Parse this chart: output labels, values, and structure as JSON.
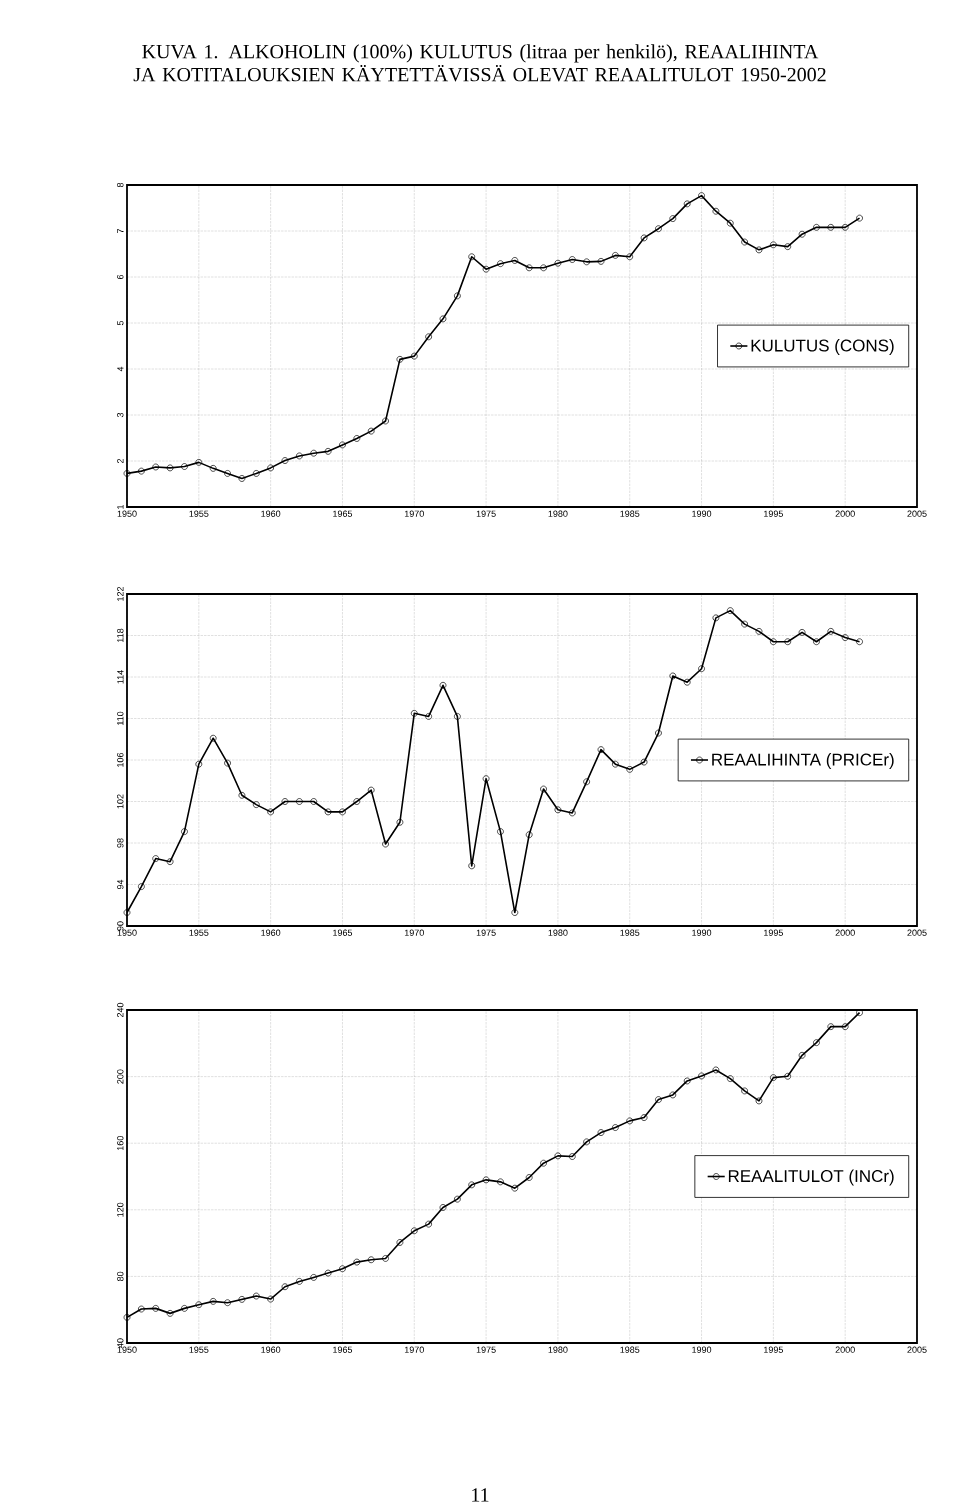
{
  "chart_data": [
    {
      "type": "line",
      "title": "KUVA 1. ALKOHOLIN (100%) KULUTUS (litraa per henkilö), REAALIHINTA JA KOTITALOUKSIEN KÄYTETTÄVISSÄ OLEVAT REAALITULOT 1950-2002",
      "x": [
        1950,
        1951,
        1952,
        1953,
        1954,
        1955,
        1956,
        1957,
        1958,
        1959,
        1960,
        1961,
        1962,
        1963,
        1964,
        1965,
        1966,
        1967,
        1968,
        1969,
        1970,
        1971,
        1972,
        1973,
        1974,
        1975,
        1976,
        1977,
        1978,
        1979,
        1980,
        1981,
        1982,
        1983,
        1984,
        1985,
        1986,
        1987,
        1988,
        1989,
        1990,
        1991,
        1992,
        1993,
        1994,
        1995,
        1996,
        1997,
        1998,
        1999,
        2000,
        2001
      ],
      "series": [
        {
          "name": "KULUTUS (CONS)",
          "color": "#000000",
          "values": [
            1.73,
            1.78,
            1.87,
            1.85,
            1.88,
            1.97,
            1.84,
            1.73,
            1.62,
            1.73,
            1.85,
            2.01,
            2.11,
            2.17,
            2.21,
            2.35,
            2.49,
            2.65,
            2.87,
            4.21,
            4.28,
            4.7,
            5.09,
            5.59,
            6.44,
            6.17,
            6.29,
            6.36,
            6.2,
            6.2,
            6.3,
            6.38,
            6.33,
            6.34,
            6.47,
            6.44,
            6.85,
            7.05,
            7.27,
            7.59,
            7.77,
            7.43,
            7.17,
            6.76,
            6.59,
            6.7,
            6.66,
            6.93,
            7.08,
            7.08,
            7.08,
            7.28
          ]
        }
      ],
      "xlim": [
        1950,
        2005
      ],
      "xticks": [
        1950,
        1955,
        1960,
        1965,
        1970,
        1975,
        1980,
        1985,
        1990,
        1995,
        2000,
        2005
      ],
      "ylim": [
        1,
        8
      ],
      "yticks": [
        1,
        2,
        3,
        4,
        5,
        6,
        7,
        8
      ],
      "grid": true,
      "legend": "right",
      "marker": "circle",
      "line_style": "solid"
    },
    {
      "type": "line",
      "x": [
        1950,
        1951,
        1952,
        1953,
        1954,
        1955,
        1956,
        1957,
        1958,
        1959,
        1960,
        1961,
        1962,
        1963,
        1964,
        1965,
        1966,
        1967,
        1968,
        1969,
        1970,
        1971,
        1972,
        1973,
        1974,
        1975,
        1976,
        1977,
        1978,
        1979,
        1980,
        1981,
        1982,
        1983,
        1984,
        1985,
        1986,
        1987,
        1988,
        1989,
        1990,
        1991,
        1992,
        1993,
        1994,
        1995,
        1996,
        1997,
        1998,
        1999,
        2000,
        2001
      ],
      "series": [
        {
          "name": "REAALIHINTA (PRICEr)",
          "color": "#000000",
          "values": [
            91.3,
            93.8,
            96.5,
            96.2,
            99.1,
            105.6,
            108.1,
            105.7,
            102.6,
            101.7,
            101.0,
            102.0,
            102.0,
            102.0,
            101.0,
            101.0,
            102.0,
            103.1,
            97.9,
            100.0,
            110.5,
            110.2,
            113.2,
            110.2,
            95.8,
            104.2,
            99.1,
            91.3,
            98.8,
            103.2,
            101.2,
            100.9,
            103.9,
            107.0,
            105.6,
            105.1,
            105.8,
            108.6,
            114.1,
            113.5,
            114.8,
            119.7,
            120.4,
            119.1,
            118.4,
            117.4,
            117.4,
            118.3,
            117.4,
            118.4,
            117.8,
            117.4
          ]
        }
      ],
      "xlim": [
        1950,
        2005
      ],
      "xticks": [
        1950,
        1955,
        1960,
        1965,
        1970,
        1975,
        1980,
        1985,
        1990,
        1995,
        2000,
        2005
      ],
      "ylim": [
        90,
        122
      ],
      "yticks": [
        90,
        94,
        98,
        102,
        106,
        110,
        114,
        118,
        122
      ],
      "grid": true,
      "legend": "right",
      "marker": "circle",
      "line_style": "solid"
    },
    {
      "type": "line",
      "x": [
        1950,
        1951,
        1952,
        1953,
        1954,
        1955,
        1956,
        1957,
        1958,
        1959,
        1960,
        1961,
        1962,
        1963,
        1964,
        1965,
        1966,
        1967,
        1968,
        1969,
        1970,
        1971,
        1972,
        1973,
        1974,
        1975,
        1976,
        1977,
        1978,
        1979,
        1980,
        1981,
        1982,
        1983,
        1984,
        1985,
        1986,
        1987,
        1988,
        1989,
        1990,
        1991,
        1992,
        1993,
        1994,
        1995,
        1996,
        1997,
        1998,
        1999,
        2000,
        2001
      ],
      "series": [
        {
          "name": "REAALITULOT (INCr)",
          "color": "#000000",
          "values": [
            55.4,
            60.4,
            60.8,
            57.8,
            60.8,
            63.0,
            65.0,
            64.2,
            66.2,
            68.2,
            66.4,
            73.8,
            77.0,
            79.4,
            82.0,
            84.6,
            88.6,
            90.0,
            90.8,
            100.4,
            107.4,
            111.4,
            121.4,
            126.4,
            135.0,
            138.0,
            136.8,
            133.0,
            139.4,
            148.0,
            152.4,
            152.0,
            160.8,
            166.4,
            169.4,
            173.4,
            175.4,
            186.2,
            189.0,
            197.4,
            200.4,
            204.0,
            198.8,
            191.4,
            185.4,
            199.4,
            200.2,
            212.8,
            220.4,
            230.0,
            230.0,
            238.4
          ]
        }
      ],
      "xlim": [
        1950,
        2005
      ],
      "xticks": [
        1950,
        1955,
        1960,
        1965,
        1970,
        1975,
        1980,
        1985,
        1990,
        1995,
        2000,
        2005
      ],
      "ylim": [
        40,
        240
      ],
      "yticks": [
        40,
        80,
        120,
        160,
        200,
        240
      ],
      "grid": true,
      "legend": "right",
      "marker": "circle",
      "line_style": "solid",
      "annotations": [
        "11"
      ]
    }
  ]
}
